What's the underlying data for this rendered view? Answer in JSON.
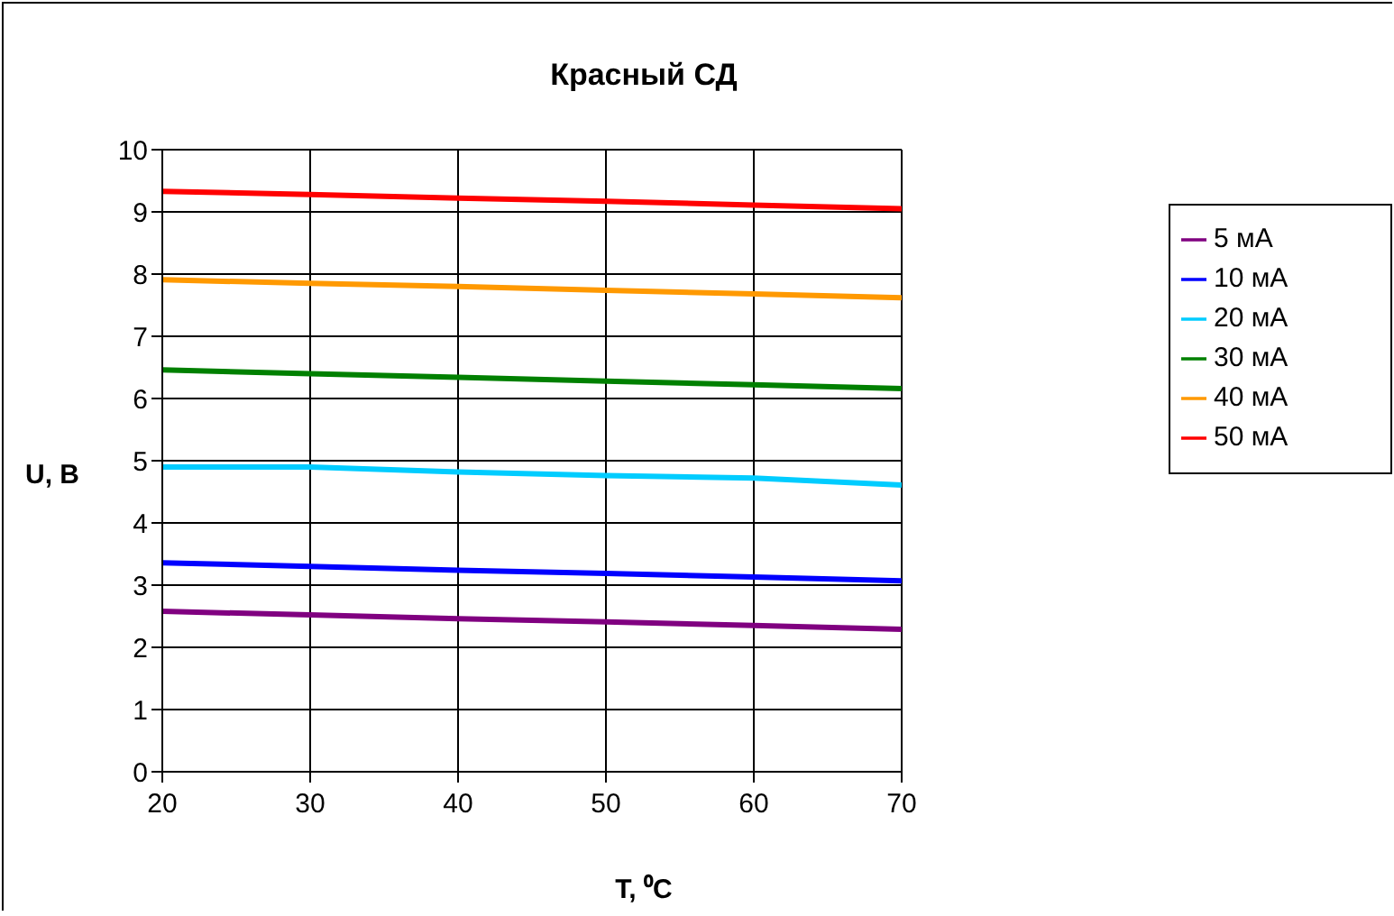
{
  "chart_data": {
    "type": "line",
    "title": "Красный СД",
    "xlabel": "T, ⁰C",
    "ylabel": "U, В",
    "x": [
      20,
      30,
      40,
      50,
      60,
      70
    ],
    "series": [
      {
        "name": "5 мА",
        "color": "#800080",
        "values": [
          2.58,
          2.52,
          2.46,
          2.41,
          2.35,
          2.29
        ]
      },
      {
        "name": "10 мА",
        "color": "#0000ff",
        "values": [
          3.36,
          3.3,
          3.24,
          3.19,
          3.13,
          3.07
        ]
      },
      {
        "name": "20 мА",
        "color": "#00ccff",
        "values": [
          4.9,
          4.9,
          4.82,
          4.76,
          4.72,
          4.61
        ]
      },
      {
        "name": "30 мА",
        "color": "#008000",
        "values": [
          6.46,
          6.4,
          6.34,
          6.28,
          6.22,
          6.16
        ]
      },
      {
        "name": "40 мА",
        "color": "#ff9900",
        "values": [
          7.91,
          7.85,
          7.8,
          7.74,
          7.68,
          7.62
        ]
      },
      {
        "name": "50 мА",
        "color": "#ff0000",
        "values": [
          9.33,
          9.28,
          9.22,
          9.17,
          9.11,
          9.05
        ]
      }
    ],
    "xlim": [
      20,
      70
    ],
    "xticks": [
      20,
      30,
      40,
      50,
      60,
      70
    ],
    "ylim": [
      0,
      10
    ],
    "yticks": [
      0,
      1,
      2,
      3,
      4,
      5,
      6,
      7,
      8,
      9,
      10
    ],
    "grid": true,
    "legend": "right",
    "marker": "none",
    "line_style": "solid"
  }
}
